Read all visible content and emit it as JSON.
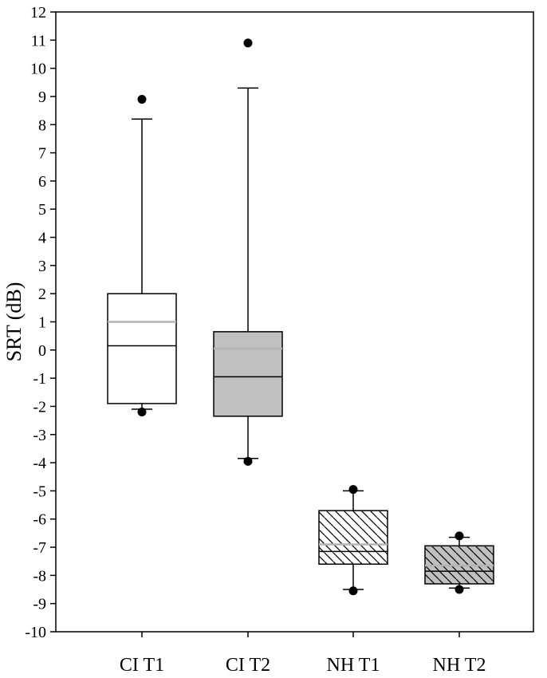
{
  "chart_data": {
    "type": "box",
    "title": "",
    "xlabel": "",
    "ylabel": "SRT (dB)",
    "ylim": [
      -10,
      12
    ],
    "yticks": [
      -10,
      -9,
      -8,
      -7,
      -6,
      -5,
      -4,
      -3,
      -2,
      -1,
      0,
      1,
      2,
      3,
      4,
      5,
      6,
      7,
      8,
      9,
      10,
      11,
      12
    ],
    "grid": false,
    "categories": [
      "CI T1",
      "CI T2",
      "NH T1",
      "NH T2"
    ],
    "boxes": [
      {
        "category": "CI T1",
        "whisker_low": -2.1,
        "q1": -1.9,
        "median": 0.15,
        "mean": 1.0,
        "q3": 2.0,
        "whisker_high": 8.2,
        "outliers": [
          8.9,
          -2.2
        ],
        "fill": "#ffffff",
        "pattern": "none"
      },
      {
        "category": "CI T2",
        "whisker_low": -3.85,
        "q1": -2.35,
        "median": -0.95,
        "mean": 0.05,
        "q3": 0.65,
        "whisker_high": 9.3,
        "outliers": [
          10.9,
          -3.95
        ],
        "fill": "#c0c0c0",
        "pattern": "none"
      },
      {
        "category": "NH T1",
        "whisker_low": -8.5,
        "q1": -7.6,
        "median": -7.15,
        "mean": -6.9,
        "q3": -5.7,
        "whisker_high": -5.0,
        "outliers": [
          -4.95,
          -8.55
        ],
        "fill": "#ffffff",
        "pattern": "hatch"
      },
      {
        "category": "NH T2",
        "whisker_low": -8.45,
        "q1": -8.3,
        "median": -7.85,
        "mean": -7.65,
        "q3": -6.95,
        "whisker_high": -6.65,
        "outliers": [
          -6.6,
          -8.5
        ],
        "fill": "#c0c0c0",
        "pattern": "hatch"
      }
    ],
    "colors": {
      "median": "#000000",
      "mean": "#b4b4b4"
    }
  }
}
